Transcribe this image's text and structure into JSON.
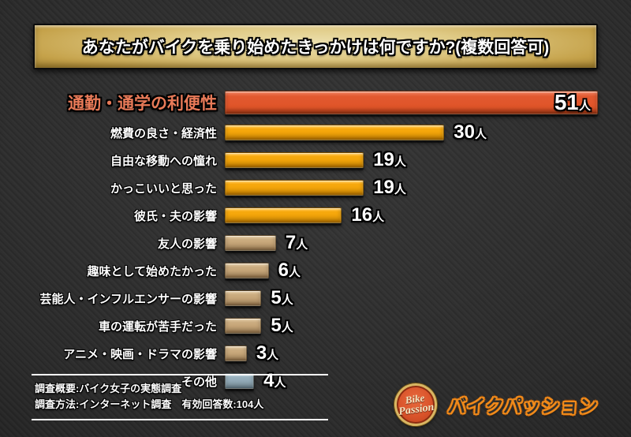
{
  "title": "あなたがバイクを乗り始めたきっかけは何ですか?(複数回答可)",
  "chart_data": {
    "type": "bar",
    "orientation": "horizontal",
    "title": "あなたがバイクを乗り始めたきっかけは何ですか?(複数回答可)",
    "unit_suffix": "人",
    "categories": [
      "通勤・通学の利便性",
      "燃費の良さ・経済性",
      "自由な移動への憧れ",
      "かっこいいと思った",
      "彼氏・夫の影響",
      "友人の影響",
      "趣味として始めたかった",
      "芸能人・インフルエンサーの影響",
      "車の運転が苦手だった",
      "アニメ・映画・ドラマの影響",
      "その他"
    ],
    "values": [
      51,
      30,
      19,
      19,
      16,
      7,
      6,
      5,
      5,
      3,
      4
    ],
    "xlim": [
      0,
      51
    ],
    "bar_styles": [
      "red",
      "amber",
      "amber",
      "amber",
      "amber",
      "tan",
      "tan",
      "tan",
      "tan",
      "tan",
      "blue"
    ],
    "highlighted_category_index": 0,
    "grid": false,
    "legend": "none"
  },
  "footer": {
    "line1": "調査概要:バイク女子の実態調査",
    "line2": "調査方法:インターネット調査　有効回答数:104人"
  },
  "logo": {
    "badge_top": "Bike",
    "badge_bottom": "Passion",
    "brand_name": "バイクパッション"
  },
  "colors": {
    "background": "#2b2b2b",
    "banner_gold_light": "#ece0ad",
    "banner_gold_dark": "#84671d",
    "bar_red": "#e05428",
    "bar_amber": "#f3a307",
    "bar_tan": "#c5a273",
    "bar_blue": "#90a8b5",
    "highlight_label": "#e87a58",
    "logo_orange": "#f08a1a"
  }
}
